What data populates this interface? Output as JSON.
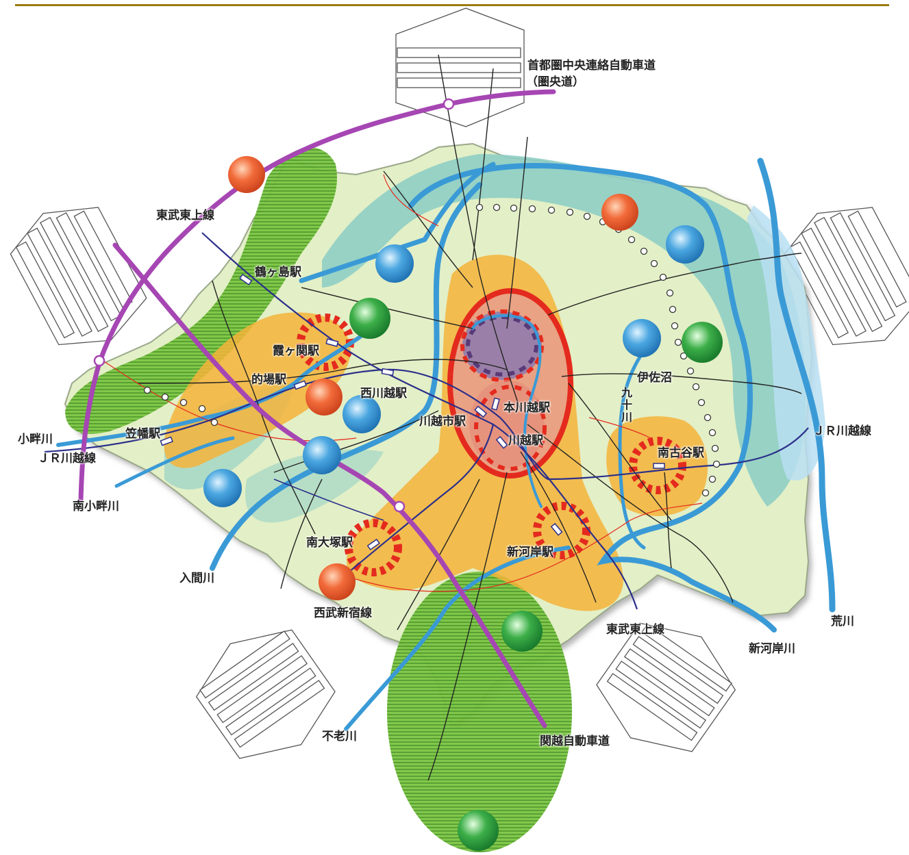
{
  "colors": {
    "header_rule": "#9a7a10",
    "expressway": "#a646b3",
    "river": "#3a9ad6",
    "urban_core": "#e83324",
    "urban_zone": "#f5b33a",
    "green_zone": "#6cbc3a",
    "teal_zone": "#7ec8c0",
    "base_land": "#e6f0c8"
  },
  "icons": {
    "orange_circle": "orange-sphere-icon",
    "blue_circle": "blue-sphere-icon",
    "green_circle": "green-sphere-icon",
    "station": "station-marker-icon",
    "interchange": "interchange-ring-icon"
  },
  "labels": {
    "ken_o_do_1": "首都圏中央連絡自動車道",
    "ken_o_do_2": "（圏央道）",
    "tobu_tojo_nw": "東武東上線",
    "tsurugashima": "鶴ヶ島駅",
    "kasumigaseki": "霞ヶ関駅",
    "matoba": "的場駅",
    "nishikawagoe": "西川越駅",
    "kasahata": "笠幡駅",
    "kawagoeshi": "川越市駅",
    "honkawagoe": "本川越駅",
    "kawagoe": "川越駅",
    "isanuma": "伊佐沼",
    "kujukawa": "九十川",
    "minamifuruya": "南古谷駅",
    "jr_kawagoe_e": "ＪＲ川越線",
    "kohata_gawa": "小畔川",
    "jr_kawagoe_w": "ＪＲ川越線",
    "minami_kohata": "南小畔川",
    "minamiotsuka": "南大塚駅",
    "shingashi_sta": "新河岸駅",
    "iruma": "入間川",
    "seibu_shinjuku": "西武新宿線",
    "tobu_tojo_se": "東武東上線",
    "shingashi_river": "新河岸川",
    "arakawa": "荒川",
    "furo": "不老川",
    "kanetsu": "関越自動車道"
  }
}
